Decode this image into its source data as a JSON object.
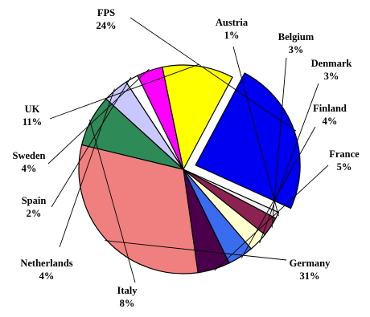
{
  "chart_data": {
    "type": "pie",
    "title": "",
    "slices": [
      {
        "label": "FPS",
        "value_label": "24%",
        "value": 24,
        "color": "#0000f0",
        "exploded": true
      },
      {
        "label": "Austria",
        "value_label": "1%",
        "value": 1,
        "color": "#f0f0f0"
      },
      {
        "label": "Belgium",
        "value_label": "3%",
        "value": 3,
        "color": "#8b2252"
      },
      {
        "label": "Denmark",
        "value_label": "3%",
        "value": 3,
        "color": "#ffffd0"
      },
      {
        "label": "Finland",
        "value_label": "4%",
        "value": 4,
        "color": "#3a6cf0"
      },
      {
        "label": "France",
        "value_label": "5%",
        "value": 5,
        "color": "#4b004b"
      },
      {
        "label": "Germany",
        "value_label": "31%",
        "value": 31,
        "color": "#f08080"
      },
      {
        "label": "Italy",
        "value_label": "8%",
        "value": 8,
        "color": "#2e8b57"
      },
      {
        "label": "Netherlands",
        "value_label": "4%",
        "value": 4,
        "color": "#c8c8ff"
      },
      {
        "label": "Spain",
        "value_label": "2%",
        "value": 2,
        "color": "#ffffff"
      },
      {
        "label": "Sweden",
        "value_label": "4%",
        "value": 4,
        "color": "#ff00ff"
      },
      {
        "label": "UK",
        "value_label": "11%",
        "value": 11,
        "color": "#ffff00"
      }
    ]
  }
}
